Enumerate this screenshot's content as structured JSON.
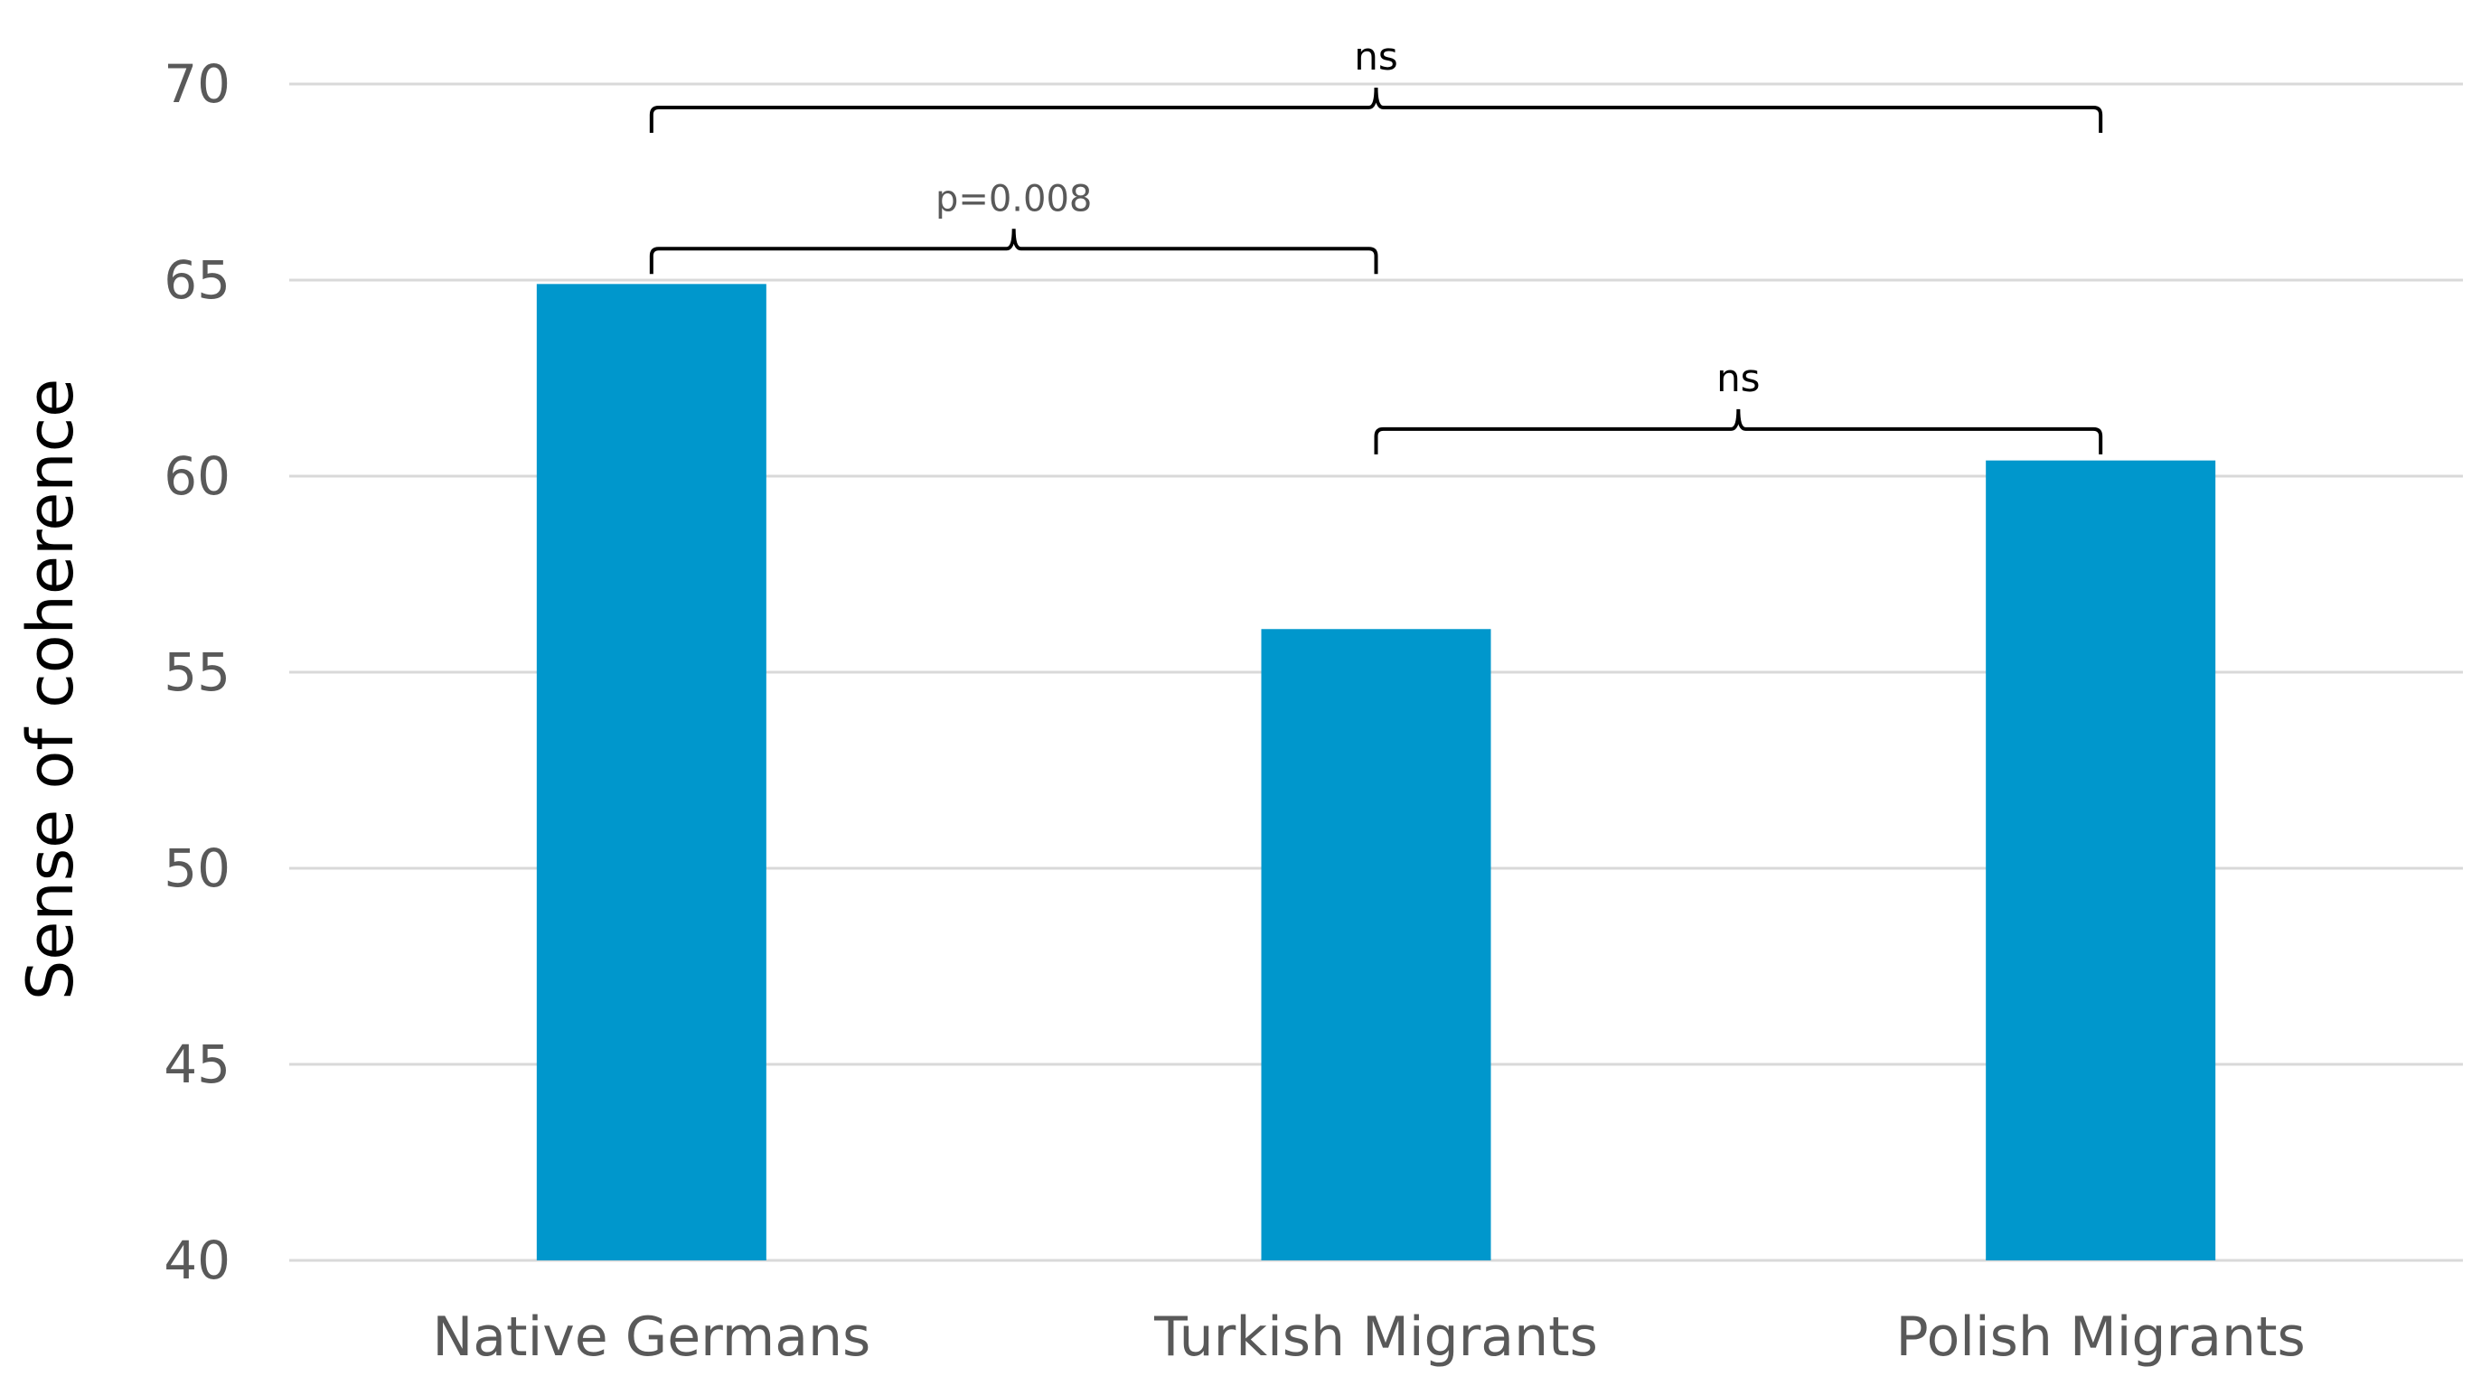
{
  "chart_data": {
    "type": "bar",
    "categories": [
      "Native Germans",
      "Turkish Migrants",
      "Polish Migrants"
    ],
    "values": [
      64.9,
      56.1,
      60.4
    ],
    "title": "",
    "xlabel": "",
    "ylabel": "Sense of coherence",
    "ylim": [
      40,
      70
    ],
    "yticks": [
      40,
      45,
      50,
      55,
      60,
      65,
      70
    ],
    "grid": true,
    "legend": "none",
    "bar_color": "#0097cc",
    "annotations": [
      {
        "from": "Native Germans",
        "to": "Turkish Migrants",
        "label": "p=0.008",
        "level": 65.8
      },
      {
        "from": "Turkish Migrants",
        "to": "Polish Migrants",
        "label": "ns",
        "level": 61.2
      },
      {
        "from": "Native Germans",
        "to": "Polish Migrants",
        "label": "ns",
        "level": 69.4
      }
    ]
  }
}
